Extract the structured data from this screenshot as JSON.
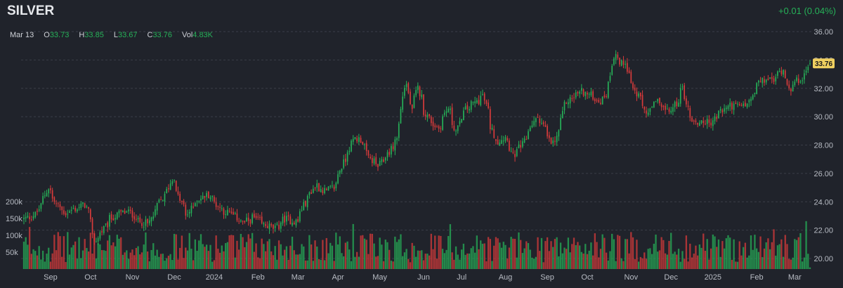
{
  "header": {
    "symbol": "SILVER",
    "change": "+0.01 (0.04%)"
  },
  "ohlc": {
    "date": "Mar 13",
    "open_label": "O",
    "open": "33.73",
    "high_label": "H",
    "high": "33.85",
    "low_label": "L",
    "low": "33.67",
    "close_label": "C",
    "close": "33.76",
    "vol_label": "Vol",
    "vol": "4.83K"
  },
  "colors": {
    "up": "#26b058",
    "down": "#d83b3b",
    "background": "#20232b",
    "grid": "#3a3e48",
    "axis_text": "#b8bcc4",
    "price_tag": "#f0d060"
  },
  "chart_data": {
    "type": "candlestick",
    "title": "SILVER",
    "last_price": 33.76,
    "last_price_label": "33.76",
    "ylim": [
      20,
      36
    ],
    "grid": true,
    "y_ticks": [
      "36.00",
      "34.00",
      "32.00",
      "30.00",
      "28.00",
      "26.00",
      "24.00",
      "22.00",
      "20.00"
    ],
    "y_tick_values": [
      36,
      34,
      32,
      30,
      28,
      26,
      24,
      22,
      20
    ],
    "volume_ticks": [
      "200k",
      "150k",
      "100k",
      "50k"
    ],
    "volume_tick_values": [
      200000,
      150000,
      100000,
      50000
    ],
    "x_ticks": [
      "Sep",
      "Oct",
      "Nov",
      "Dec",
      "2024",
      "Feb",
      "Mar",
      "Apr",
      "May",
      "Jun",
      "Jul",
      "Aug",
      "Sep",
      "Oct",
      "Nov",
      "Dec",
      "2025",
      "Feb",
      "Mar"
    ],
    "close_anchors": [
      [
        "2023-08-14",
        22.8
      ],
      [
        "2023-08-22",
        23.1
      ],
      [
        "2023-08-29",
        24.5
      ],
      [
        "2023-08-31",
        25.0
      ],
      [
        "2023-09-06",
        23.8
      ],
      [
        "2023-09-13",
        23.2
      ],
      [
        "2023-09-20",
        23.5
      ],
      [
        "2023-09-27",
        23.8
      ],
      [
        "2023-10-02",
        22.5
      ],
      [
        "2023-10-04",
        21.2
      ],
      [
        "2023-10-09",
        21.8
      ],
      [
        "2023-10-16",
        22.8
      ],
      [
        "2023-10-23",
        23.2
      ],
      [
        "2023-10-30",
        23.3
      ],
      [
        "2023-11-06",
        22.6
      ],
      [
        "2023-11-13",
        22.4
      ],
      [
        "2023-11-20",
        23.8
      ],
      [
        "2023-11-27",
        24.8
      ],
      [
        "2023-12-01",
        25.8
      ],
      [
        "2023-12-04",
        24.6
      ],
      [
        "2023-12-11",
        23.0
      ],
      [
        "2023-12-18",
        24.1
      ],
      [
        "2023-12-27",
        24.5
      ],
      [
        "2024-01-05",
        23.5
      ],
      [
        "2024-01-15",
        23.0
      ],
      [
        "2024-01-22",
        22.5
      ],
      [
        "2024-01-29",
        22.9
      ],
      [
        "2024-02-05",
        22.4
      ],
      [
        "2024-02-14",
        22.1
      ],
      [
        "2024-02-21",
        22.8
      ],
      [
        "2024-03-01",
        22.6
      ],
      [
        "2024-03-08",
        24.2
      ],
      [
        "2024-03-15",
        25.2
      ],
      [
        "2024-03-22",
        24.7
      ],
      [
        "2024-03-28",
        25.0
      ],
      [
        "2024-04-05",
        27.0
      ],
      [
        "2024-04-12",
        28.5
      ],
      [
        "2024-04-17",
        28.4
      ],
      [
        "2024-04-23",
        27.1
      ],
      [
        "2024-04-30",
        26.5
      ],
      [
        "2024-05-07",
        27.4
      ],
      [
        "2024-05-14",
        28.5
      ],
      [
        "2024-05-17",
        31.5
      ],
      [
        "2024-05-21",
        32.3
      ],
      [
        "2024-05-24",
        30.3
      ],
      [
        "2024-05-29",
        32.0
      ],
      [
        "2024-06-03",
        30.4
      ],
      [
        "2024-06-07",
        29.7
      ],
      [
        "2024-06-13",
        29.2
      ],
      [
        "2024-06-20",
        30.6
      ],
      [
        "2024-06-26",
        29.0
      ],
      [
        "2024-07-03",
        30.5
      ],
      [
        "2024-07-10",
        31.0
      ],
      [
        "2024-07-16",
        31.5
      ],
      [
        "2024-07-22",
        29.3
      ],
      [
        "2024-07-26",
        28.2
      ],
      [
        "2024-08-02",
        28.6
      ],
      [
        "2024-08-07",
        27.2
      ],
      [
        "2024-08-09",
        27.5
      ],
      [
        "2024-08-14",
        28.0
      ],
      [
        "2024-08-21",
        29.5
      ],
      [
        "2024-08-26",
        30.0
      ],
      [
        "2024-09-04",
        28.1
      ],
      [
        "2024-09-09",
        28.5
      ],
      [
        "2024-09-13",
        30.8
      ],
      [
        "2024-09-20",
        31.4
      ],
      [
        "2024-09-26",
        31.8
      ],
      [
        "2024-10-03",
        31.5
      ],
      [
        "2024-10-10",
        31.1
      ],
      [
        "2024-10-15",
        31.6
      ],
      [
        "2024-10-18",
        33.8
      ],
      [
        "2024-10-22",
        34.5
      ],
      [
        "2024-10-24",
        33.7
      ],
      [
        "2024-10-29",
        33.9
      ],
      [
        "2024-11-01",
        32.5
      ],
      [
        "2024-11-08",
        31.2
      ],
      [
        "2024-11-14",
        30.2
      ],
      [
        "2024-11-22",
        31.2
      ],
      [
        "2024-11-28",
        30.3
      ],
      [
        "2024-12-03",
        30.6
      ],
      [
        "2024-12-10",
        32.0
      ],
      [
        "2024-12-13",
        30.5
      ],
      [
        "2024-12-19",
        29.5
      ],
      [
        "2024-12-24",
        29.7
      ],
      [
        "2024-12-30",
        29.5
      ],
      [
        "2025-01-06",
        30.3
      ],
      [
        "2025-01-13",
        30.8
      ],
      [
        "2025-01-21",
        30.7
      ],
      [
        "2025-01-28",
        31.0
      ],
      [
        "2025-02-03",
        32.3
      ],
      [
        "2025-02-10",
        32.7
      ],
      [
        "2025-02-14",
        32.5
      ],
      [
        "2025-02-21",
        33.4
      ],
      [
        "2025-02-27",
        32.0
      ],
      [
        "2025-03-04",
        32.5
      ],
      [
        "2025-03-07",
        32.8
      ],
      [
        "2025-03-10",
        32.8
      ],
      [
        "2025-03-13",
        33.76
      ]
    ],
    "volume_range_k": [
      20,
      110
    ]
  }
}
